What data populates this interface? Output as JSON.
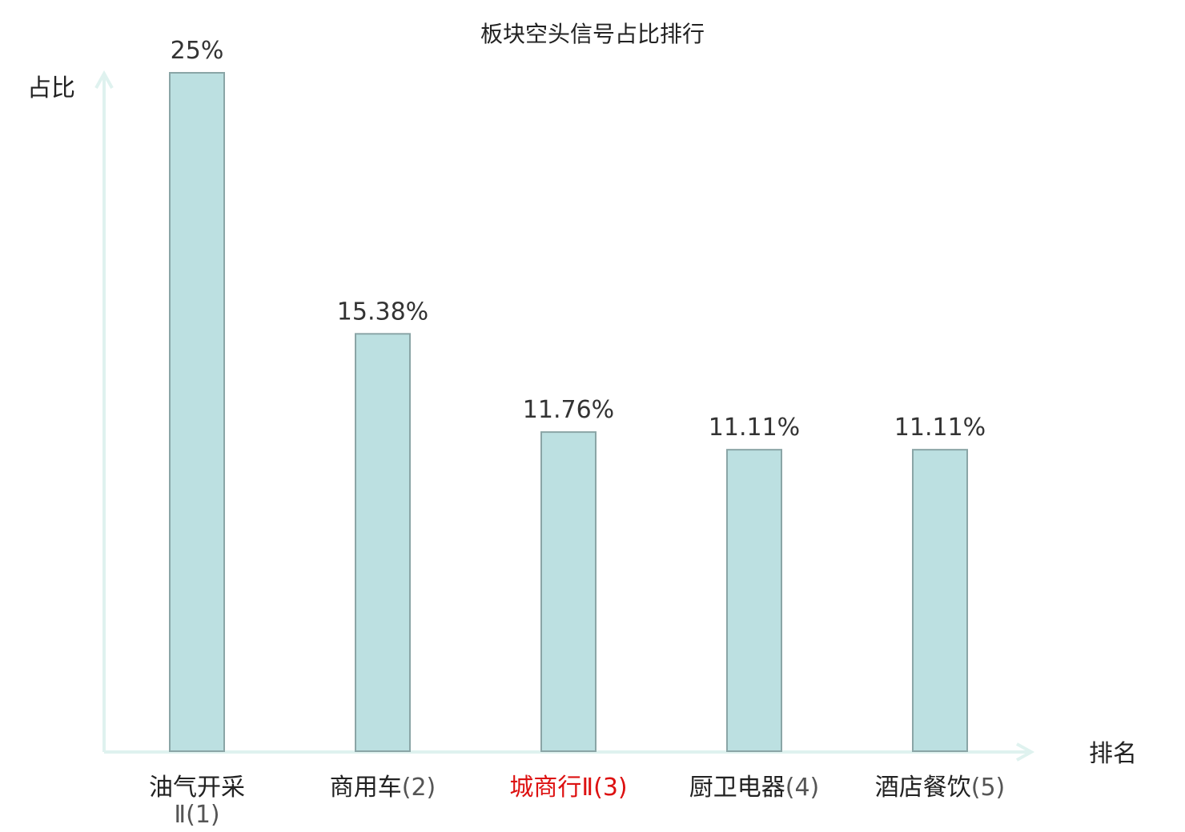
{
  "chart_data": {
    "type": "bar",
    "title": "板块空头信号占比排行",
    "ylabel": "占比",
    "xlabel": "排名",
    "ylim": [
      0,
      25
    ],
    "grid": false,
    "legend": "none",
    "categories": [
      {
        "name": "油气开采",
        "suffix": "Ⅱ",
        "rank": "(1)",
        "highlight": false
      },
      {
        "name": "商用车",
        "suffix": "",
        "rank": "(2)",
        "highlight": false
      },
      {
        "name": "城商行",
        "suffix": "Ⅱ",
        "rank": "(3)",
        "highlight": true
      },
      {
        "name": "厨卫电器",
        "suffix": "",
        "rank": "(4)",
        "highlight": false
      },
      {
        "name": "酒店餐饮",
        "suffix": "",
        "rank": "(5)",
        "highlight": false
      }
    ],
    "values": [
      25,
      15.38,
      11.76,
      11.11,
      11.11
    ],
    "value_labels": [
      "25%",
      "15.38%",
      "11.76%",
      "11.11%",
      "11.11%"
    ],
    "colors": {
      "bar_fill": "#bce0e1",
      "bar_stroke": "#8aa5a6",
      "axis": "#dff2ef",
      "highlight_text": "#dd1111",
      "text": "#222222"
    }
  }
}
